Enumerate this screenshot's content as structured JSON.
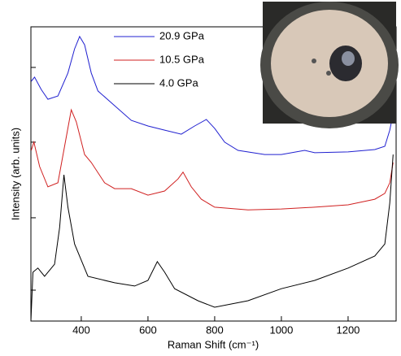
{
  "chart_data": {
    "type": "line",
    "xlabel": "Raman Shift (cm⁻¹)",
    "ylabel": "Intensity (arb. units)",
    "xlim": [
      249,
      1344
    ],
    "xticks": [
      400,
      600,
      800,
      1000,
      1200
    ],
    "ylim": [
      0,
      100
    ],
    "yticks": [
      10.5,
      35.1,
      60.8,
      86.2
    ],
    "legend": "upper center",
    "series": [
      {
        "name": "20.9 GPa",
        "color": "#2020d0",
        "x": [
          250,
          260,
          280,
          300,
          330,
          360,
          380,
          395,
          410,
          430,
          450,
          500,
          550,
          600,
          650,
          700,
          740,
          775,
          800,
          830,
          870,
          950,
          1000,
          1070,
          1100,
          1200,
          1280,
          1310,
          1325,
          1335
        ],
        "values": [
          81.5,
          82.9,
          78.7,
          75.4,
          76.5,
          84.3,
          92.5,
          96.7,
          93.9,
          84.3,
          78.2,
          73.2,
          68.2,
          66.3,
          64.9,
          63.5,
          66.3,
          68.5,
          65.5,
          60.8,
          58.0,
          56.6,
          56.6,
          58.0,
          57.2,
          57.5,
          58.3,
          59.4,
          64.9,
          70.4
        ]
      },
      {
        "name": "10.5 GPa",
        "color": "#d02020",
        "x": [
          250,
          258,
          275,
          300,
          330,
          350,
          370,
          385,
          410,
          430,
          470,
          500,
          550,
          600,
          650,
          690,
          705,
          730,
          760,
          800,
          900,
          1000,
          1100,
          1200,
          1280,
          1310,
          1325,
          1335
        ],
        "values": [
          58.0,
          60.8,
          52.5,
          45.6,
          47.0,
          59.4,
          71.8,
          67.7,
          56.6,
          53.9,
          47.0,
          45.0,
          45.0,
          42.8,
          44.2,
          48.3,
          50.6,
          45.6,
          41.4,
          38.7,
          37.8,
          38.1,
          38.7,
          39.5,
          41.4,
          43.4,
          47.0,
          53.9
        ]
      },
      {
        "name": "4.0 GPa",
        "color": "#000000",
        "x": [
          249,
          255,
          270,
          290,
          320,
          335,
          348,
          360,
          380,
          420,
          500,
          560,
          600,
          628,
          650,
          680,
          750,
          800,
          900,
          1000,
          1100,
          1200,
          1280,
          1310,
          1325,
          1335
        ],
        "values": [
          0,
          16.6,
          18.0,
          15.2,
          19.3,
          31.8,
          49.7,
          38.7,
          26.2,
          15.2,
          13.0,
          11.9,
          13.8,
          20.2,
          16.6,
          11.0,
          6.9,
          4.7,
          6.9,
          11.0,
          13.8,
          18.0,
          22.1,
          26.2,
          40.1,
          56.6
        ]
      }
    ]
  }
}
